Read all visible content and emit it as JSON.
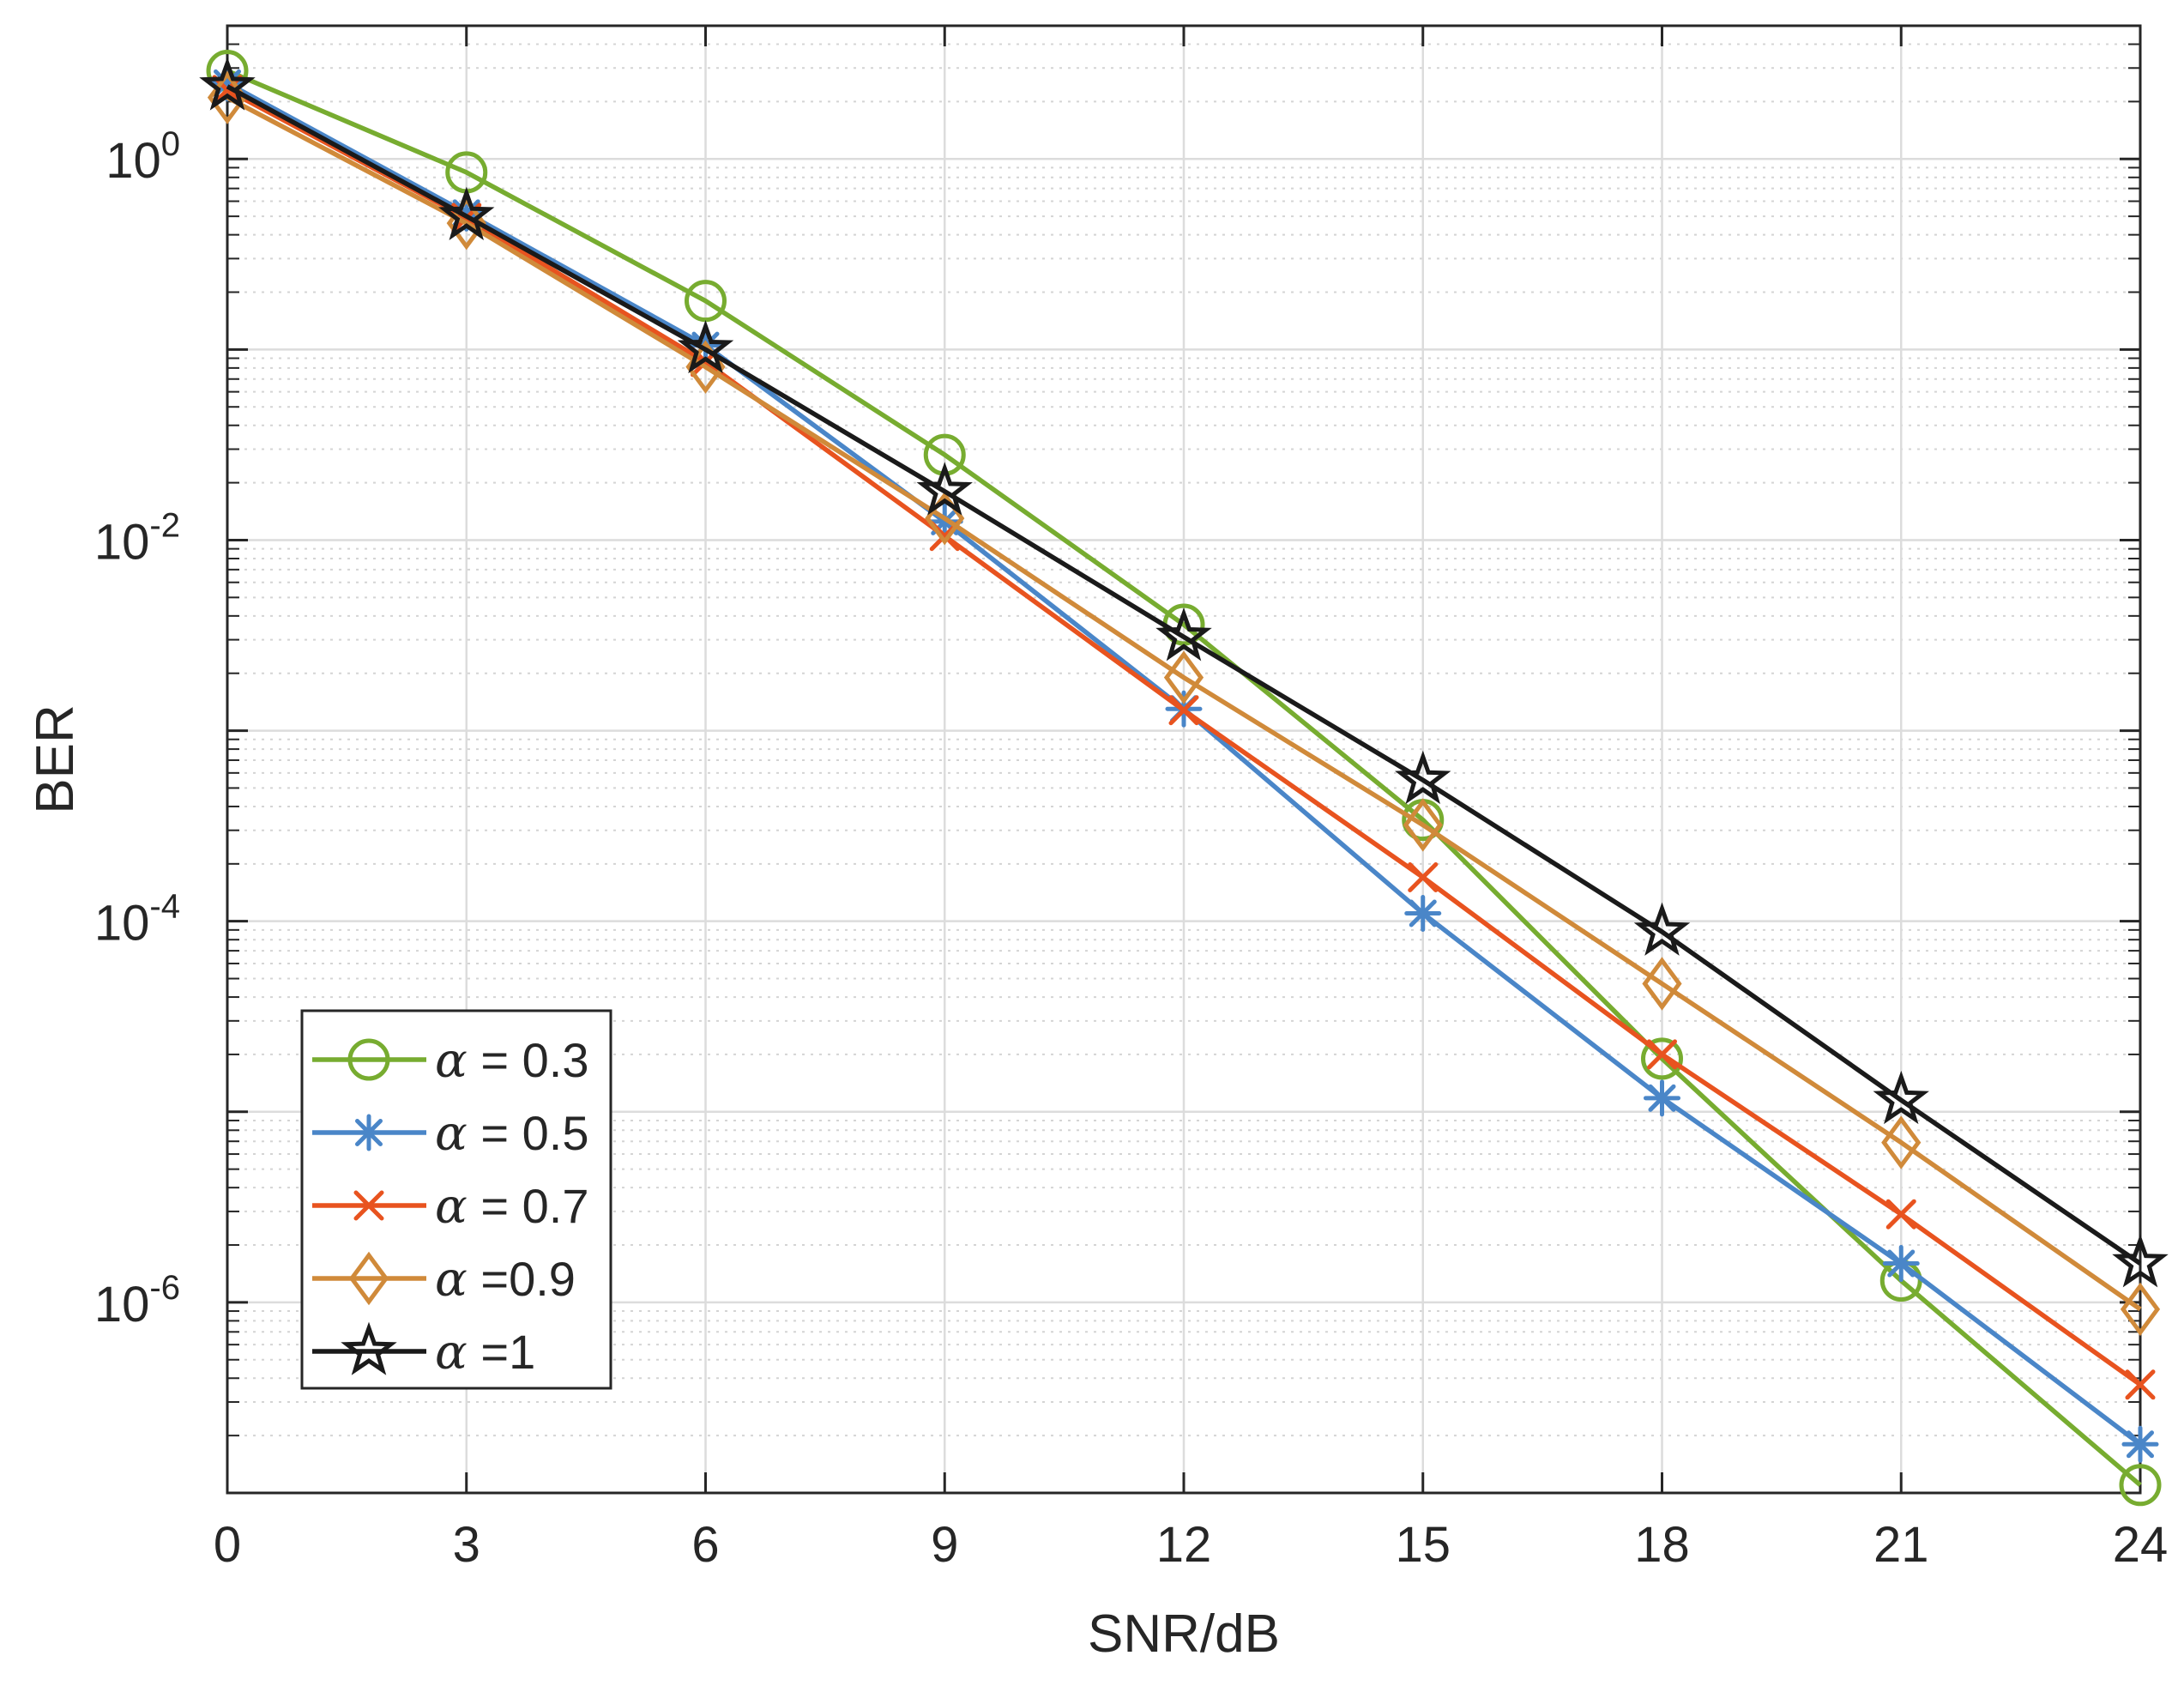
{
  "chart_data": {
    "type": "line",
    "title": "",
    "xlabel": "SNR/dB",
    "ylabel": "BER",
    "xlim": [
      0,
      24
    ],
    "ylim": [
      1e-07,
      5
    ],
    "yscale": "log",
    "grid": true,
    "minor_grid": true,
    "x": [
      0,
      3,
      6,
      9,
      12,
      15,
      18,
      21,
      24
    ],
    "xticks": [
      0,
      3,
      6,
      9,
      12,
      15,
      18,
      21,
      24
    ],
    "yticks": [
      {
        "value": 1.0,
        "base": "10",
        "exp": "0"
      },
      {
        "value": 0.01,
        "base": "10",
        "exp": "-2"
      },
      {
        "value": 0.0001,
        "base": "10",
        "exp": "-4"
      },
      {
        "value": 1e-06,
        "base": "10",
        "exp": "-6"
      }
    ],
    "legend_position": "bottom-left",
    "series": [
      {
        "name": "α = 0.3",
        "symbol": "α",
        "suffix": " = 0.3",
        "color": "#77ac30",
        "marker": "circle",
        "values": [
          2.9,
          0.85,
          0.18,
          0.028,
          0.0036,
          0.00034,
          1.9e-05,
          1.3e-06,
          1.1e-07
        ]
      },
      {
        "name": "α = 0.5",
        "symbol": "α",
        "suffix": " = 0.5",
        "color": "#4a86c8",
        "marker": "asterisk",
        "values": [
          2.5,
          0.52,
          0.105,
          0.0125,
          0.0013,
          0.00011,
          1.18e-05,
          1.6e-06,
          1.8e-07
        ]
      },
      {
        "name": "α = 0.7",
        "symbol": "α",
        "suffix": " = 0.7",
        "color": "#e8531f",
        "marker": "x",
        "values": [
          2.3,
          0.49,
          0.086,
          0.0105,
          0.00128,
          0.00017,
          2e-05,
          2.9e-06,
          3.7e-07
        ]
      },
      {
        "name": "α =0.9",
        "symbol": "α",
        "suffix": " =0.9",
        "color": "#d08a3a",
        "marker": "diamond",
        "values": [
          2.1,
          0.46,
          0.081,
          0.013,
          0.0019,
          0.00032,
          4.7e-05,
          6.9e-06,
          9.2e-07
        ]
      },
      {
        "name": "α =1",
        "symbol": "α",
        "suffix": " =1",
        "color": "#1a1a1a",
        "marker": "star",
        "values": [
          2.4,
          0.5,
          0.1,
          0.018,
          0.0031,
          0.00055,
          8.8e-05,
          1.15e-05,
          1.6e-06
        ]
      }
    ]
  }
}
